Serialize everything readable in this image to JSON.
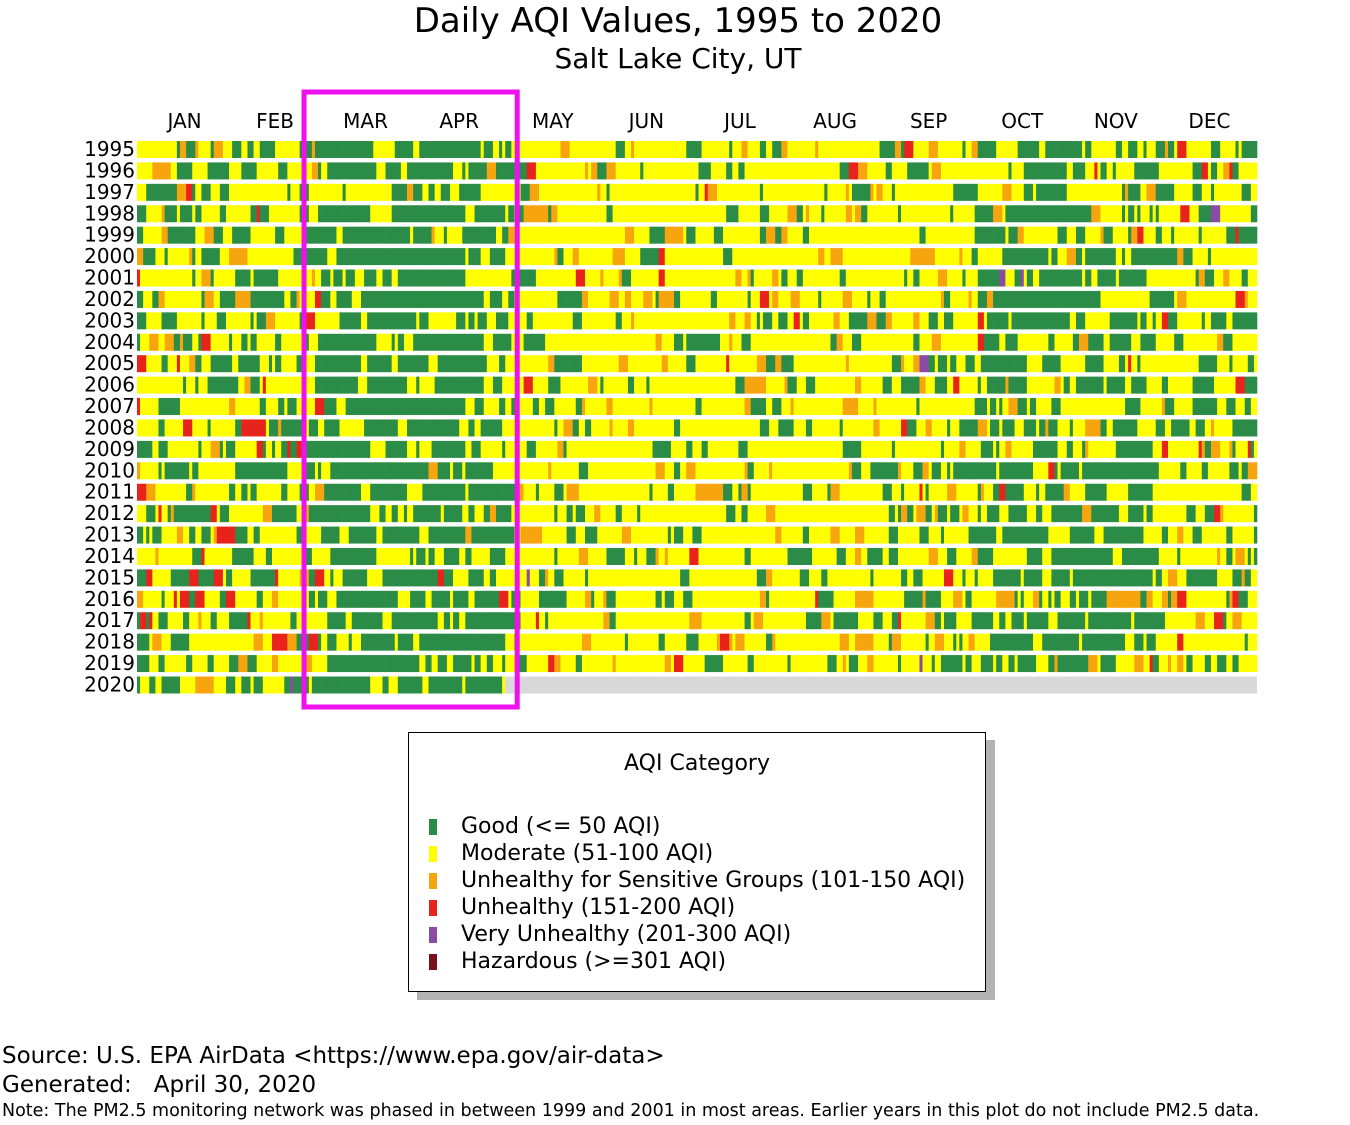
{
  "chart_data": {
    "type": "heatmap",
    "title": "Daily AQI Values, 1995 to 2020",
    "subtitle": "Salt Lake City, UT",
    "x_axis": {
      "tick_labels": [
        "JAN",
        "FEB",
        "MAR",
        "APR",
        "MAY",
        "JUN",
        "JUL",
        "AUG",
        "SEP",
        "OCT",
        "NOV",
        "DEC"
      ]
    },
    "y_axis": {
      "tick_labels": [
        "1995",
        "1996",
        "1997",
        "1998",
        "1999",
        "2000",
        "2001",
        "2002",
        "2003",
        "2004",
        "2005",
        "2006",
        "2007",
        "2008",
        "2009",
        "2010",
        "2011",
        "2012",
        "2013",
        "2014",
        "2015",
        "2016",
        "2017",
        "2018",
        "2019",
        "2020"
      ]
    },
    "highlight": {
      "months": [
        "MAR",
        "APR"
      ],
      "color": "#ee11ee"
    },
    "data_available_through": "2020-04-30",
    "no_data_color": "#d9d9d9",
    "categories": [
      {
        "label": "Good (<= 50 AQI)",
        "color": "#2a8c46"
      },
      {
        "label": "Moderate (51-100 AQI)",
        "color": "#ffff00"
      },
      {
        "label": "Unhealthy for Sensitive Groups (101-150 AQI)",
        "color": "#f7a50f"
      },
      {
        "label": "Unhealthy (151-200 AQI)",
        "color": "#e8231c"
      },
      {
        "label": "Very Unhealthy (201-300 AQI)",
        "color": "#8b4aa5"
      },
      {
        "label": "Hazardous (>=301 AQI)",
        "color": "#7a0f1e"
      }
    ]
  },
  "legend": {
    "title": "AQI Category"
  },
  "footer": {
    "source": "Source: U.S. EPA AirData <https://www.epa.gov/air-data>",
    "generated_label": "Generated:",
    "generated_value": "April 30, 2020",
    "note": "Note: The PM2.5 monitoring network was phased in between 1999 and 2001 in most areas. Earlier years in this plot do not include PM2.5 data."
  }
}
